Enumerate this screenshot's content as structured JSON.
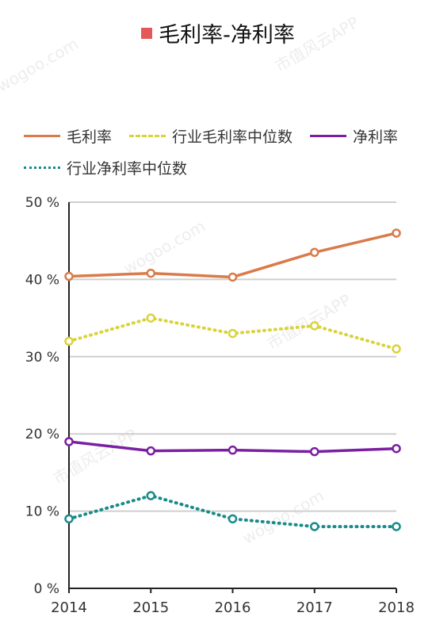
{
  "chart_data": {
    "type": "line",
    "title": "毛利率-净利率",
    "categories": [
      "2014",
      "2015",
      "2016",
      "2017",
      "2018"
    ],
    "yticks": [
      "0 %",
      "10 %",
      "20 %",
      "30 %",
      "40 %",
      "50 %"
    ],
    "ylim": [
      0,
      50
    ],
    "grid": true,
    "legend_position": "top",
    "series": [
      {
        "name": "毛利率",
        "values": [
          40.4,
          40.8,
          40.3,
          43.5,
          46.0
        ],
        "color": "#d97b4a",
        "style": "solid"
      },
      {
        "name": "行业毛利率中位数",
        "values": [
          32.0,
          35.0,
          33.0,
          34.0,
          31.0
        ],
        "color": "#d9d33a",
        "style": "dotted"
      },
      {
        "name": "净利率",
        "values": [
          19.0,
          17.8,
          17.9,
          17.7,
          18.1
        ],
        "color": "#7a1fa2",
        "style": "solid"
      },
      {
        "name": "行业净利率中位数",
        "values": [
          9.0,
          12.0,
          9.0,
          8.0,
          8.0
        ],
        "color": "#1a8a8a",
        "style": "dotted"
      }
    ]
  },
  "title_marker_color": "#e4585a",
  "watermark": {
    "text": "市值风云APP",
    "site": "wogoo.com"
  }
}
